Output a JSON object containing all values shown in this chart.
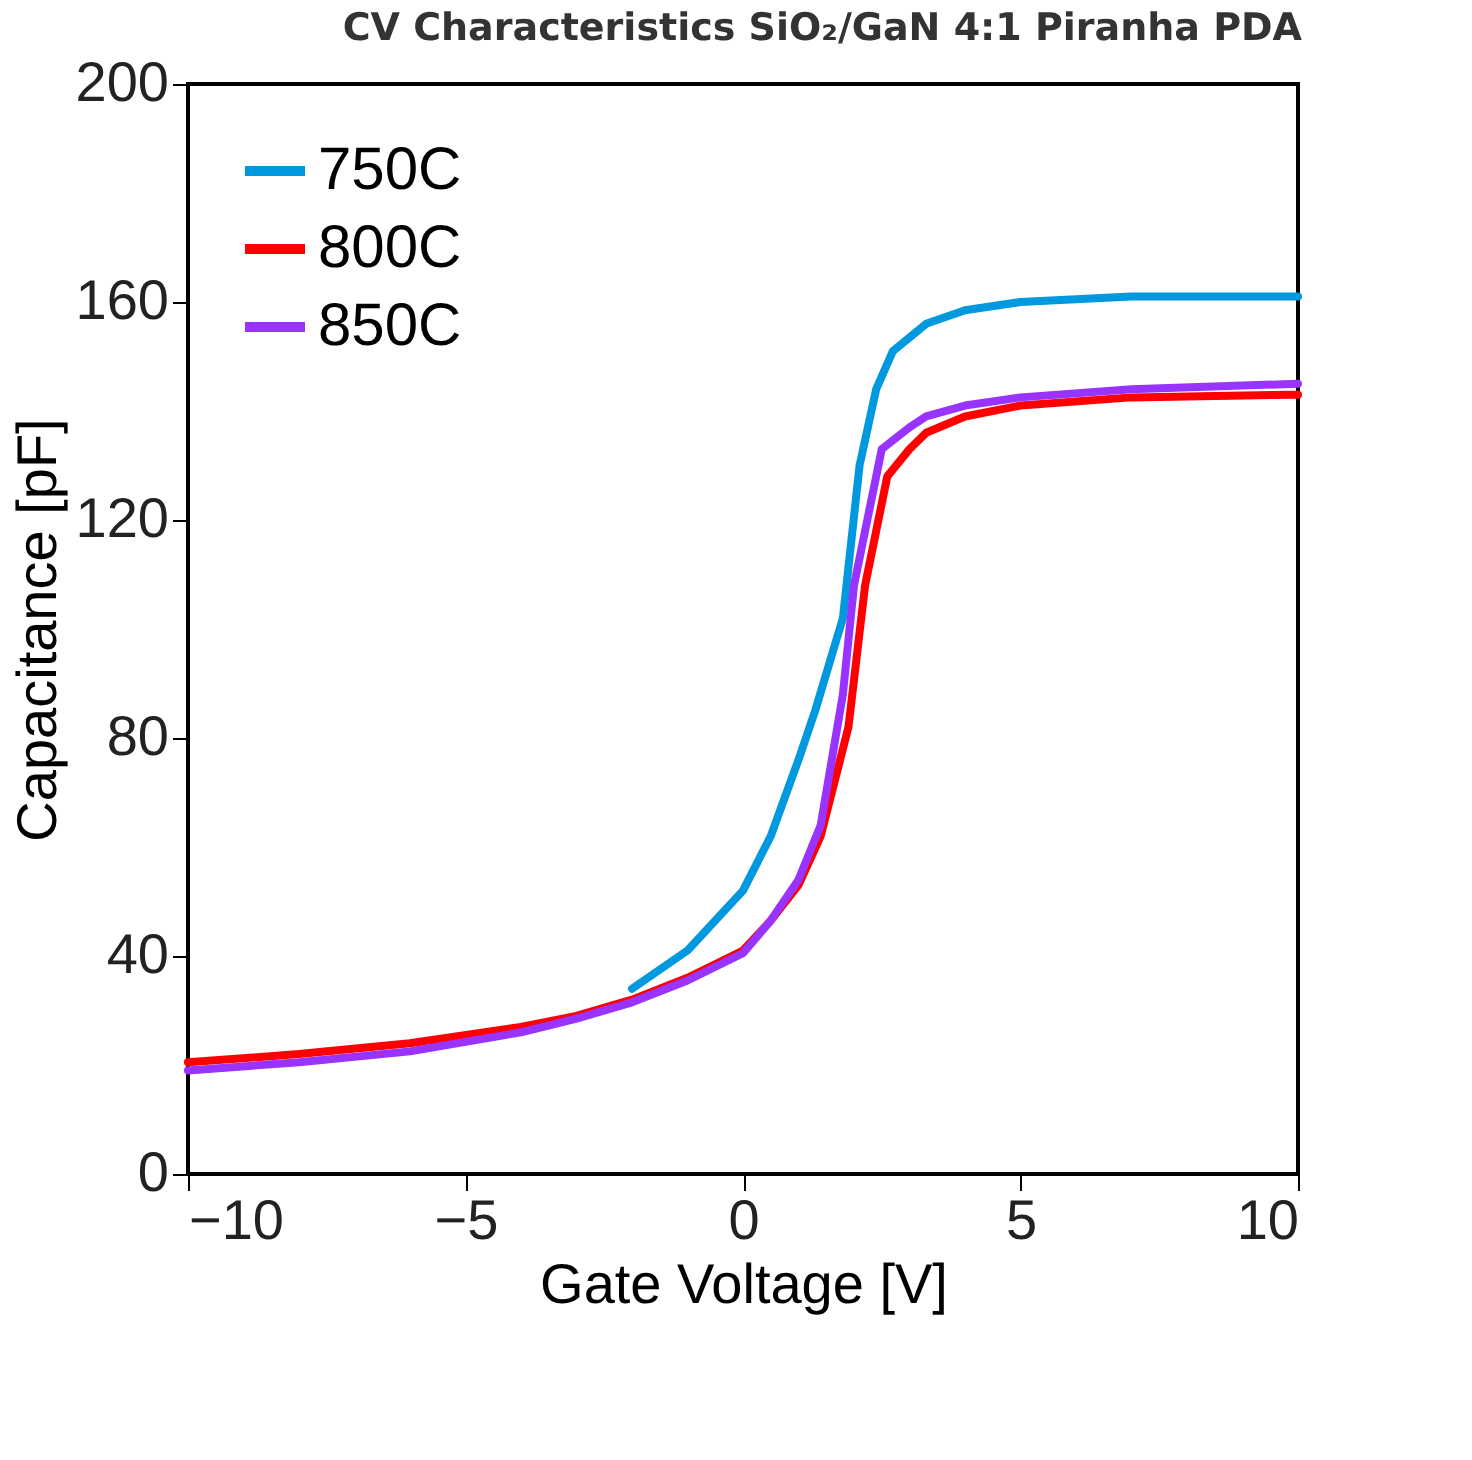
{
  "chart_data": {
    "type": "line",
    "title": "CV Characteristics SiO₂/GaN 4:1 Piranha PDA",
    "xlabel": "Gate Voltage [V]",
    "ylabel": "Capacitance [pF]",
    "xlim": [
      -10,
      10
    ],
    "xticks": [
      -10,
      -5,
      0,
      5,
      10
    ],
    "ylim": [
      0,
      200
    ],
    "yticks": [
      0,
      40,
      80,
      120,
      160,
      200
    ],
    "grid": false,
    "legend": "top left",
    "line_style": "solid",
    "marker": "none",
    "series": [
      {
        "name": "750C",
        "color": "#0099e0",
        "x": [
          -2,
          -1,
          0,
          0.5,
          1,
          1.3,
          1.8,
          2.1,
          2.4,
          2.7,
          3.3,
          4,
          5,
          7,
          10
        ],
        "values": [
          34,
          41,
          52,
          62,
          76,
          85,
          102,
          130,
          144,
          151,
          156,
          158.5,
          160,
          161,
          161
        ]
      },
      {
        "name": "800C",
        "color": "#ff0000",
        "x": [
          -10,
          -8,
          -6,
          -4,
          -3,
          -2,
          -1,
          0,
          0.5,
          1,
          1.4,
          1.9,
          2.2,
          2.6,
          3,
          3.3,
          4,
          5,
          7,
          10
        ],
        "values": [
          20.5,
          22,
          24,
          27,
          29,
          32,
          36,
          41,
          46.5,
          53,
          62,
          82,
          108,
          128,
          133,
          136,
          139,
          141,
          142.5,
          143
        ]
      },
      {
        "name": "850C",
        "color": "#9933ff",
        "x": [
          -10,
          -8,
          -6,
          -4,
          -3,
          -2,
          -1,
          0,
          0.5,
          1,
          1.4,
          1.8,
          2.0,
          2.5,
          3,
          3.3,
          4,
          5,
          7,
          10
        ],
        "values": [
          19,
          20.5,
          22.5,
          26,
          28.5,
          31.5,
          35.5,
          40.5,
          46.5,
          54,
          64,
          88,
          108,
          133,
          137,
          139,
          141,
          142.5,
          144,
          145
        ]
      }
    ]
  }
}
